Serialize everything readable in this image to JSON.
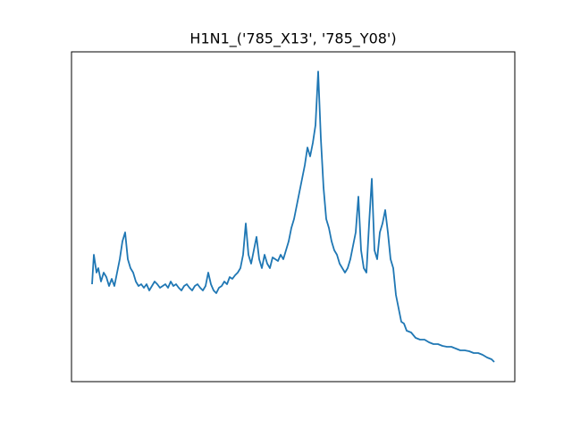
{
  "chart_data": {
    "type": "line",
    "title": "H1N1_('785_X13', '785_Y08')",
    "x": [
      0,
      2,
      5,
      7,
      10,
      13,
      16,
      19,
      22,
      25,
      28,
      31,
      34,
      37,
      40,
      43,
      46,
      49,
      52,
      55,
      58,
      61,
      64,
      67,
      70,
      73,
      76,
      79,
      82,
      85,
      88,
      91,
      94,
      97,
      100,
      103,
      106,
      109,
      112,
      115,
      118,
      121,
      124,
      127,
      130,
      133,
      136,
      139,
      142,
      145,
      148,
      151,
      154,
      157,
      160,
      163,
      166,
      169,
      172,
      175,
      178,
      181,
      184,
      187,
      190,
      193,
      196,
      199,
      202,
      205,
      208,
      211,
      214,
      217,
      220,
      223,
      226,
      229,
      232,
      235,
      238,
      241,
      244,
      247,
      250,
      253,
      256,
      259,
      262,
      265,
      268,
      271,
      274,
      277,
      280,
      283,
      286,
      289,
      292,
      295,
      298,
      301,
      304,
      307,
      310,
      313,
      316,
      319,
      322,
      325,
      328,
      331,
      334,
      337,
      340,
      343,
      346,
      349,
      352,
      357,
      362,
      367,
      372,
      377,
      382,
      387,
      392,
      397,
      402,
      407,
      412,
      417,
      422,
      427,
      432,
      437,
      442,
      447,
      450
    ],
    "series": [
      {
        "color": "#1f77b4",
        "values": [
          109,
          142,
          122,
          127,
          112,
          122,
          117,
          107,
          115,
          107,
          122,
          137,
          157,
          167,
          137,
          127,
          122,
          112,
          107,
          109,
          105,
          109,
          102,
          107,
          112,
          109,
          105,
          107,
          109,
          105,
          112,
          107,
          109,
          105,
          102,
          107,
          109,
          105,
          102,
          107,
          109,
          105,
          102,
          107,
          122,
          109,
          102,
          99,
          105,
          107,
          112,
          109,
          117,
          115,
          119,
          122,
          127,
          142,
          177,
          142,
          132,
          147,
          162,
          137,
          127,
          142,
          132,
          127,
          139,
          137,
          135,
          142,
          137,
          147,
          157,
          172,
          182,
          197,
          212,
          227,
          242,
          262,
          252,
          267,
          287,
          347,
          272,
          217,
          182,
          172,
          157,
          147,
          142,
          132,
          127,
          122,
          127,
          137,
          152,
          167,
          207,
          147,
          127,
          122,
          177,
          227,
          147,
          137,
          167,
          177,
          192,
          167,
          137,
          127,
          97,
          82,
          67,
          65,
          57,
          55,
          49,
          47,
          47,
          44,
          42,
          42,
          40,
          39,
          39,
          37,
          35,
          35,
          34,
          32,
          32,
          30,
          27,
          25,
          22
        ]
      }
    ],
    "xlim": [
      -23,
      473
    ],
    "ylim": [
      0,
      369
    ]
  }
}
